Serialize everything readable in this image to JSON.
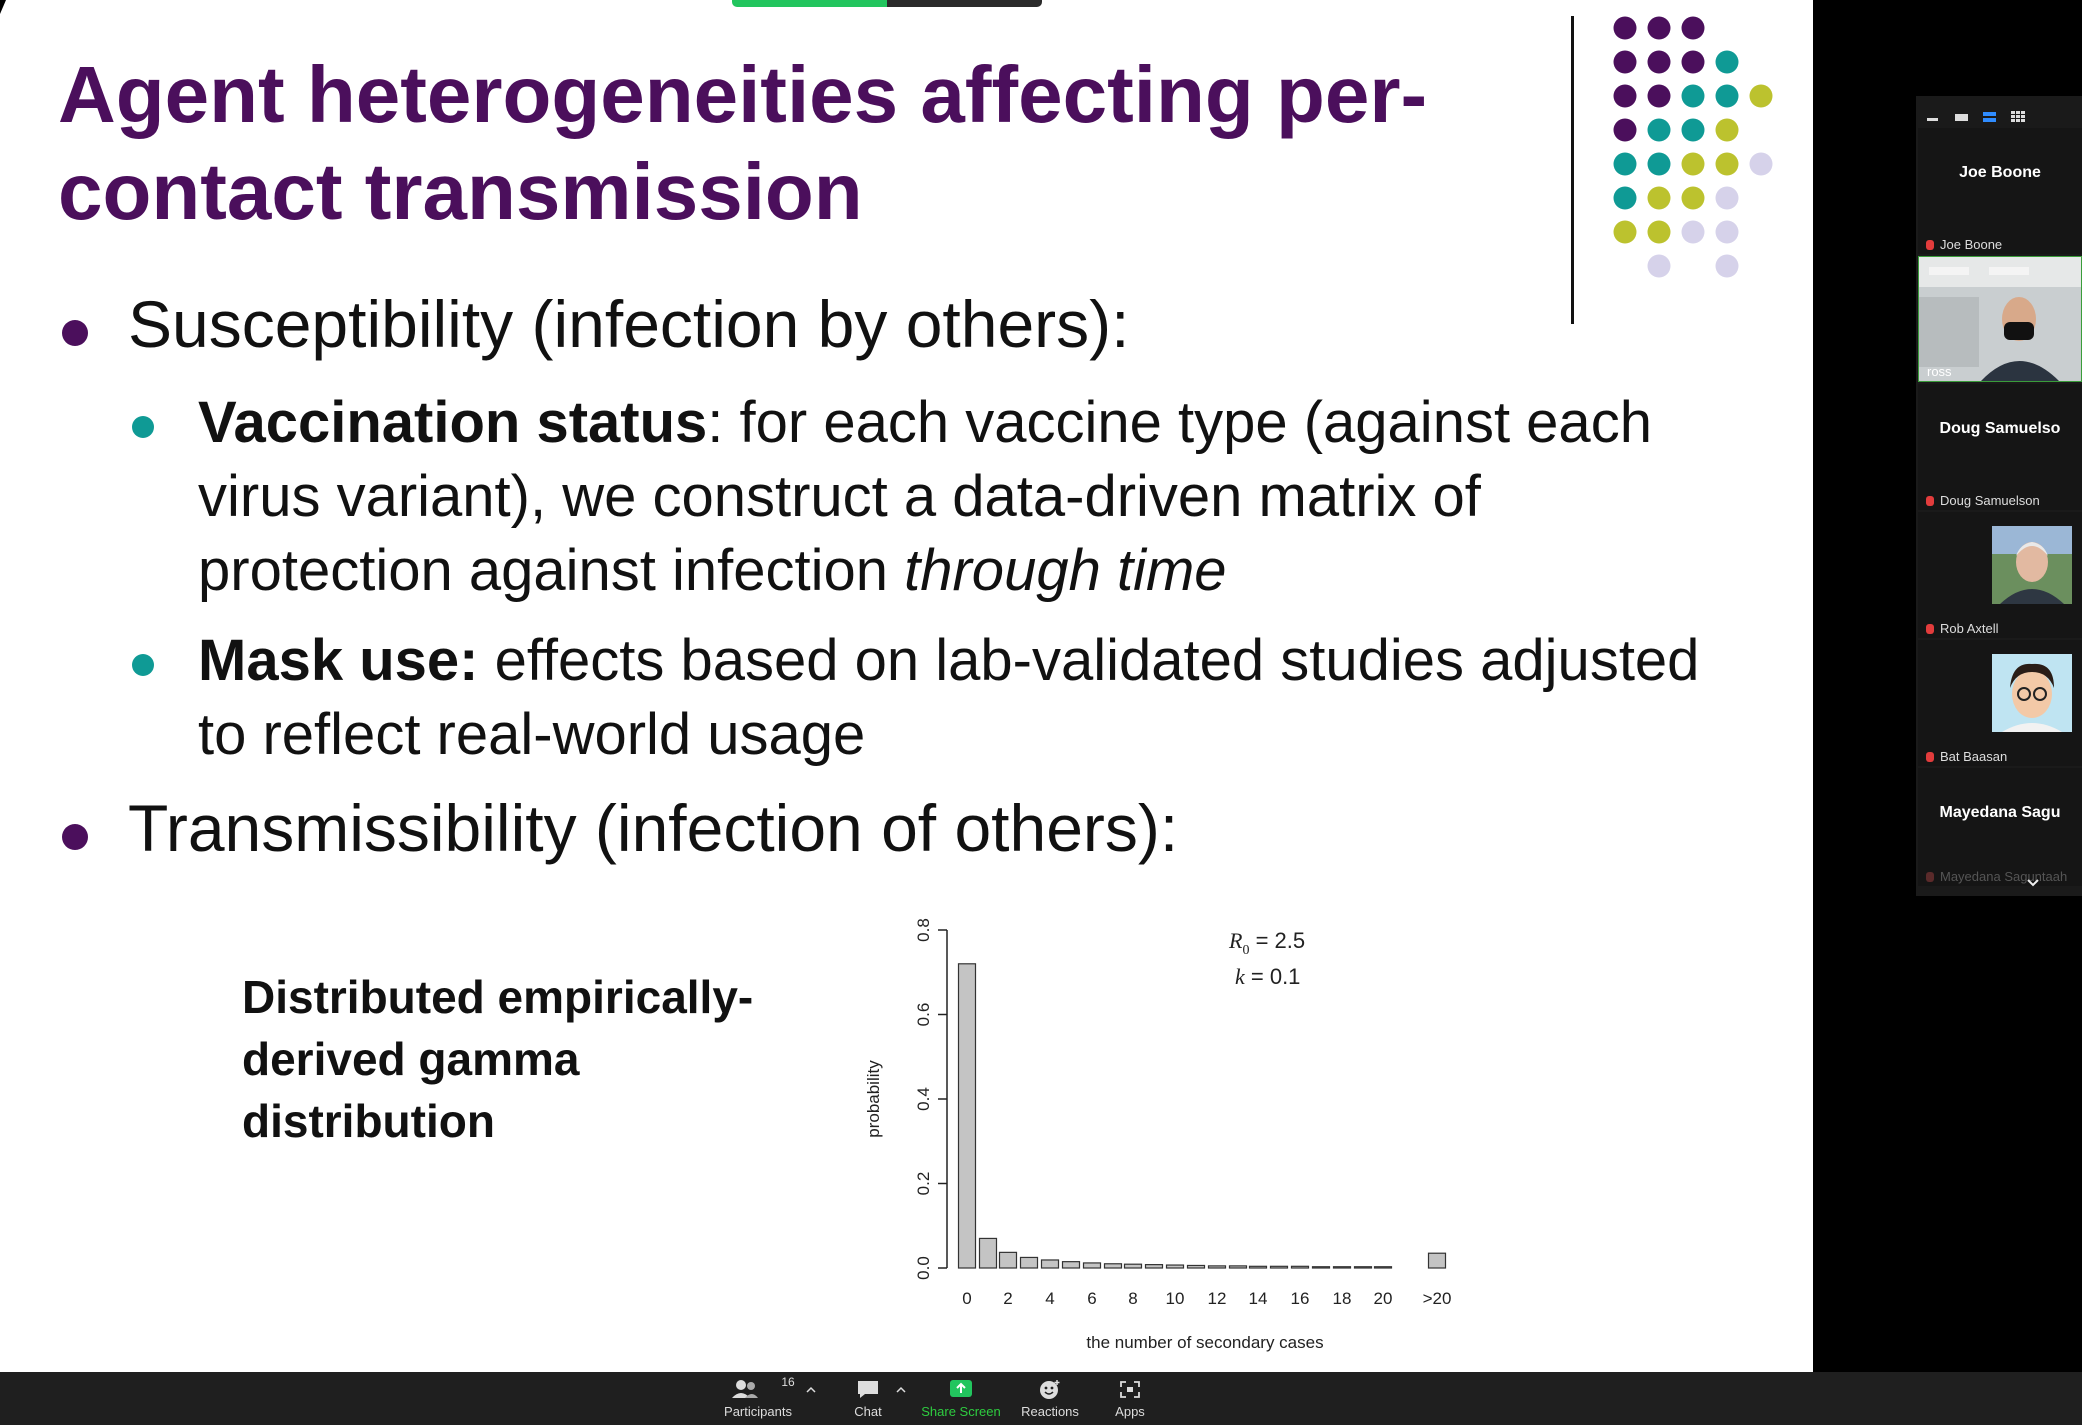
{
  "slide": {
    "title": "Agent heterogeneities affecting per-contact transmission",
    "bullet1": "Susceptibility (infection by others):",
    "sub1": {
      "bold": "Vaccination status",
      "text": ": for each vaccine type (against each virus variant), we construct a data-driven matrix of protection against infection ",
      "italic": "through time"
    },
    "sub2": {
      "bold": "Mask use:",
      "text": " effects based on lab-validated studies adjusted to reflect real-world usage"
    },
    "bullet2": "Transmissibility (infection of others):",
    "distributed": "Distributed empirically-derived gamma distribution",
    "colors": {
      "title": "#4b0f5c",
      "purple": "#4b0f5c",
      "teal": "#0f9a95",
      "lime": "#bcc22e",
      "lavender": "#d6d2ea"
    }
  },
  "chart_data": {
    "type": "bar",
    "categories": [
      "0",
      "1",
      "2",
      "3",
      "4",
      "5",
      "6",
      "7",
      "8",
      "9",
      "10",
      "11",
      "12",
      "13",
      "14",
      "15",
      "16",
      "17",
      "18",
      "19",
      "20",
      ">20"
    ],
    "values": [
      0.72,
      0.07,
      0.037,
      0.025,
      0.019,
      0.015,
      0.012,
      0.01,
      0.009,
      0.008,
      0.007,
      0.006,
      0.005,
      0.005,
      0.004,
      0.004,
      0.004,
      0.003,
      0.003,
      0.003,
      0.003,
      0.035
    ],
    "tick_labels": [
      "0",
      "2",
      "4",
      "6",
      "8",
      "10",
      "12",
      "14",
      "16",
      "18",
      "20",
      ">20"
    ],
    "xlabel": "the number of secondary cases",
    "ylabel": "probability",
    "yticks": [
      "0.0",
      "0.2",
      "0.4",
      "0.6",
      "0.8"
    ],
    "ylim": [
      0,
      0.8
    ],
    "annotation": {
      "r_symbol": "R",
      "r_subscript": "0",
      "r_value": " = 2.5",
      "k_symbol": "k",
      "k_value": " = 0.1"
    },
    "bar_color": "#c4c4c4"
  },
  "participants": [
    {
      "name": "Joe Boone",
      "caption": "Joe Boone",
      "muted": true
    },
    {
      "name": "",
      "caption": "ross",
      "muted": false,
      "video": true
    },
    {
      "name": "Doug Samuelso",
      "caption": "Doug Samuelson",
      "muted": true
    },
    {
      "name": "",
      "caption": "Rob Axtell",
      "muted": true,
      "avatar": "photo"
    },
    {
      "name": "",
      "caption": "Bat Baasan",
      "muted": true,
      "avatar": "cartoon"
    },
    {
      "name": "Mayedana  Sagu",
      "caption": "Mayedana Saguntaah",
      "muted": true
    }
  ],
  "toolbar": {
    "participants_label": "Participants",
    "participants_count": "16",
    "chat_label": "Chat",
    "share_label": "Share Screen",
    "reactions_label": "Reactions",
    "apps_label": "Apps"
  }
}
